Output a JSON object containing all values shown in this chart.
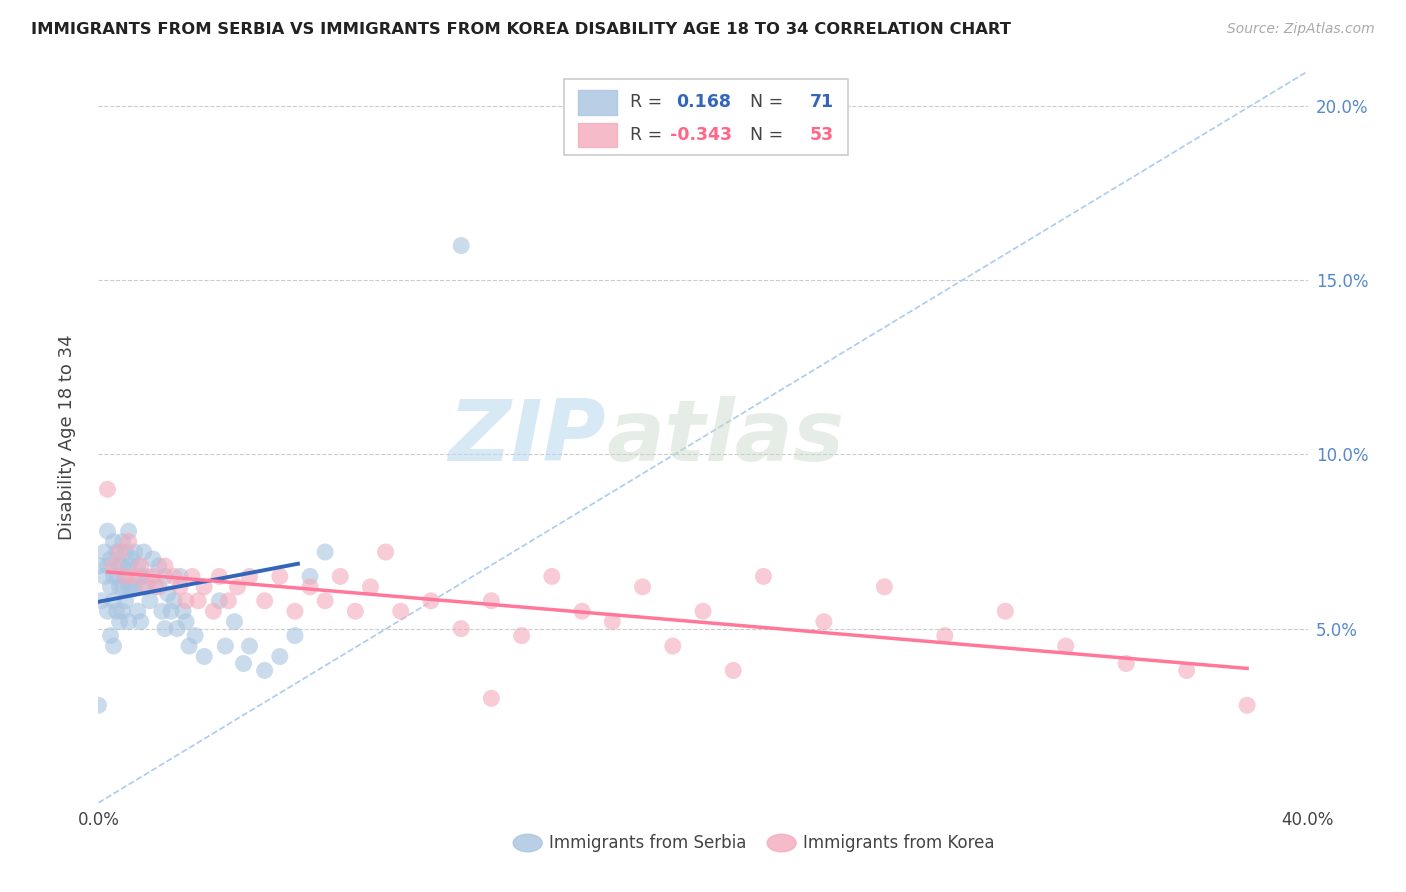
{
  "title": "IMMIGRANTS FROM SERBIA VS IMMIGRANTS FROM KOREA DISABILITY AGE 18 TO 34 CORRELATION CHART",
  "source": "Source: ZipAtlas.com",
  "ylabel_label": "Disability Age 18 to 34",
  "serbia_R": 0.168,
  "serbia_N": 71,
  "korea_R": -0.343,
  "korea_N": 53,
  "serbia_color": "#A8C4E0",
  "korea_color": "#F4AABB",
  "serbia_line_color": "#3366BB",
  "korea_line_color": "#FF7799",
  "dashed_line_color": "#AACCEE",
  "background_color": "#FFFFFF",
  "watermark_color": "#D8ECFA",
  "xlim": [
    0.0,
    0.4
  ],
  "ylim": [
    0.0,
    0.21
  ],
  "serbia_points_x": [
    0.0,
    0.0,
    0.001,
    0.002,
    0.002,
    0.003,
    0.003,
    0.003,
    0.004,
    0.004,
    0.004,
    0.005,
    0.005,
    0.005,
    0.005,
    0.006,
    0.006,
    0.006,
    0.007,
    0.007,
    0.007,
    0.008,
    0.008,
    0.008,
    0.008,
    0.009,
    0.009,
    0.009,
    0.01,
    0.01,
    0.01,
    0.01,
    0.011,
    0.011,
    0.012,
    0.012,
    0.013,
    0.013,
    0.014,
    0.014,
    0.015,
    0.015,
    0.016,
    0.017,
    0.018,
    0.019,
    0.02,
    0.021,
    0.022,
    0.022,
    0.023,
    0.024,
    0.025,
    0.026,
    0.027,
    0.028,
    0.029,
    0.03,
    0.032,
    0.035,
    0.04,
    0.042,
    0.045,
    0.048,
    0.05,
    0.055,
    0.06,
    0.065,
    0.07,
    0.075,
    0.12
  ],
  "serbia_points_y": [
    0.068,
    0.028,
    0.058,
    0.072,
    0.065,
    0.078,
    0.068,
    0.055,
    0.07,
    0.062,
    0.048,
    0.075,
    0.065,
    0.058,
    0.045,
    0.072,
    0.065,
    0.055,
    0.068,
    0.062,
    0.052,
    0.075,
    0.068,
    0.062,
    0.055,
    0.072,
    0.065,
    0.058,
    0.078,
    0.068,
    0.062,
    0.052,
    0.07,
    0.062,
    0.072,
    0.062,
    0.068,
    0.055,
    0.065,
    0.052,
    0.072,
    0.062,
    0.065,
    0.058,
    0.07,
    0.062,
    0.068,
    0.055,
    0.065,
    0.05,
    0.06,
    0.055,
    0.058,
    0.05,
    0.065,
    0.055,
    0.052,
    0.045,
    0.048,
    0.042,
    0.058,
    0.045,
    0.052,
    0.04,
    0.045,
    0.038,
    0.042,
    0.048,
    0.065,
    0.072,
    0.16
  ],
  "korea_points_x": [
    0.003,
    0.005,
    0.007,
    0.009,
    0.01,
    0.012,
    0.014,
    0.016,
    0.018,
    0.02,
    0.022,
    0.025,
    0.027,
    0.029,
    0.031,
    0.033,
    0.035,
    0.038,
    0.04,
    0.043,
    0.046,
    0.05,
    0.055,
    0.06,
    0.065,
    0.07,
    0.075,
    0.08,
    0.085,
    0.09,
    0.1,
    0.11,
    0.12,
    0.13,
    0.14,
    0.15,
    0.16,
    0.17,
    0.18,
    0.19,
    0.2,
    0.22,
    0.24,
    0.26,
    0.28,
    0.3,
    0.32,
    0.34,
    0.36,
    0.38,
    0.21,
    0.095,
    0.13
  ],
  "korea_points_y": [
    0.09,
    0.068,
    0.072,
    0.065,
    0.075,
    0.065,
    0.068,
    0.062,
    0.065,
    0.062,
    0.068,
    0.065,
    0.062,
    0.058,
    0.065,
    0.058,
    0.062,
    0.055,
    0.065,
    0.058,
    0.062,
    0.065,
    0.058,
    0.065,
    0.055,
    0.062,
    0.058,
    0.065,
    0.055,
    0.062,
    0.055,
    0.058,
    0.05,
    0.058,
    0.048,
    0.065,
    0.055,
    0.052,
    0.062,
    0.045,
    0.055,
    0.065,
    0.052,
    0.062,
    0.048,
    0.055,
    0.045,
    0.04,
    0.038,
    0.028,
    0.038,
    0.072,
    0.03
  ],
  "legend_box_color": "#FFFFFF",
  "legend_border_color": "#CCCCCC",
  "serbia_label": "Immigrants from Serbia",
  "korea_label": "Immigrants from Korea"
}
